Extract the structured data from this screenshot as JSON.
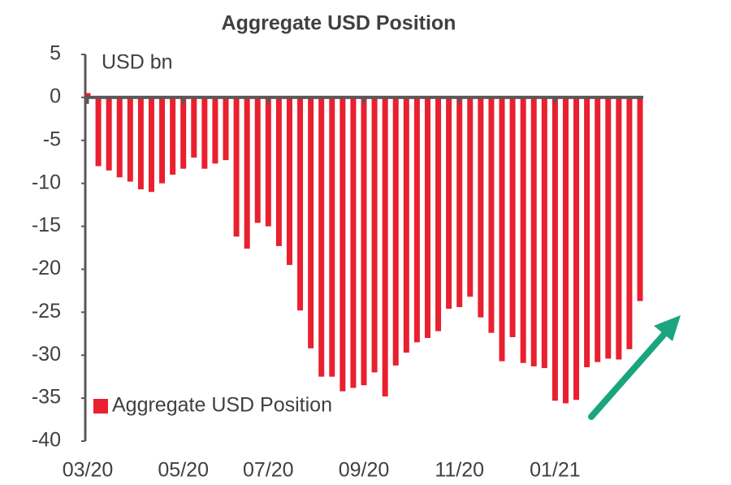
{
  "chart_data": {
    "type": "bar",
    "title": "Aggregate USD Position",
    "y_axis_label": "USD bn",
    "categories": [
      "03/20",
      null,
      null,
      null,
      null,
      null,
      null,
      null,
      null,
      "05/20",
      null,
      null,
      null,
      null,
      null,
      null,
      null,
      "07/20",
      null,
      null,
      null,
      null,
      null,
      null,
      null,
      null,
      "09/20",
      null,
      null,
      null,
      null,
      null,
      null,
      null,
      null,
      "11/20",
      null,
      null,
      null,
      null,
      null,
      null,
      null,
      null,
      "01/21",
      null,
      null,
      null,
      null,
      null,
      null,
      null,
      null
    ],
    "series": [
      {
        "name": "Aggregate USD Position",
        "color": "#e8202f",
        "values": [
          0.5,
          -8,
          -8.5,
          -9.3,
          -9.8,
          -10.7,
          -11,
          -10,
          -9,
          -8.3,
          -7,
          -8.3,
          -7.7,
          -7.3,
          -16.2,
          -17.6,
          -14.6,
          -15,
          -17.3,
          -19.5,
          -24.8,
          -29.2,
          -32.5,
          -32.5,
          -34.2,
          -33.8,
          -33.5,
          -32,
          -34.8,
          -31.2,
          -29.7,
          -28.5,
          -28,
          -27.2,
          -24.6,
          -24.4,
          -23.2,
          -25.6,
          -27.4,
          -30.7,
          -27.9,
          -30.9,
          -31.3,
          -31.5,
          -35.3,
          -35.6,
          -35.2,
          -31.4,
          -30.8,
          -30.4,
          -30.5,
          -29.3,
          -23.7
        ]
      }
    ],
    "ylim": [
      -40,
      5
    ],
    "yticks": [
      5,
      0,
      -5,
      -10,
      -15,
      -20,
      -25,
      -30,
      -35,
      -40
    ],
    "legend": "lower-left"
  }
}
